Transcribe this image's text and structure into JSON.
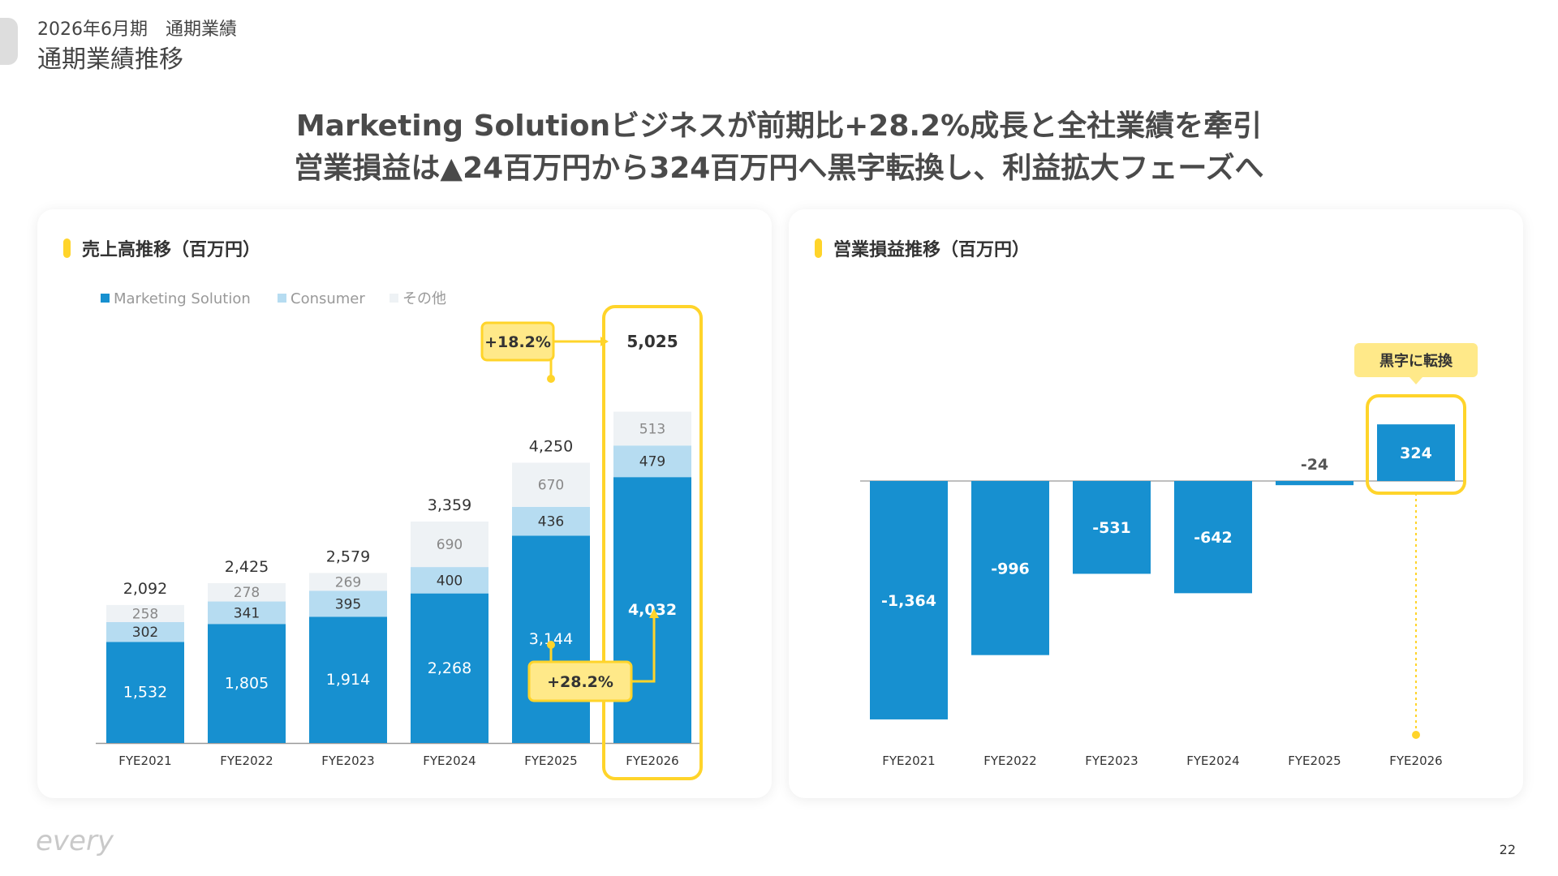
{
  "header": {
    "subtitle": "2026年6月期　通期業績",
    "title": "通期業績推移"
  },
  "headline": {
    "line1": "Marketing Solutionビジネスが前期比+28.2%成長と全社業績を牽引",
    "line2": "営業損益は▲24百万円から324百万円へ黒字転換し、利益拡大フェーズへ"
  },
  "colors": {
    "marketing": "#1790d0",
    "consumer": "#b6dcf1",
    "other": "#eef2f5",
    "highlight": "#ffd42a",
    "callout_fill": "#ffe989"
  },
  "chart_data": [
    {
      "type": "bar",
      "stacked": true,
      "title": "売上高推移（百万円）",
      "categories": [
        "FYE2021",
        "FYE2022",
        "FYE2023",
        "FYE2024",
        "FYE2025",
        "FYE2026"
      ],
      "series": [
        {
          "name": "Marketing Solution",
          "values": [
            1532,
            1805,
            1914,
            2268,
            3144,
            4032
          ]
        },
        {
          "name": "Consumer",
          "values": [
            302,
            341,
            395,
            400,
            436,
            479
          ]
        },
        {
          "name": "その他",
          "values": [
            258,
            278,
            269,
            690,
            670,
            513
          ]
        }
      ],
      "totals": [
        2092,
        2425,
        2579,
        3359,
        4250,
        5025
      ],
      "total_labels": [
        "2,092",
        "2,425",
        "2,579",
        "3,359",
        "4,250",
        "5,025"
      ],
      "segment_labels": [
        [
          "1,532",
          "1,805",
          "1,914",
          "2,268",
          "3,144",
          "4,032"
        ],
        [
          "302",
          "341",
          "395",
          "400",
          "436",
          "479"
        ],
        [
          "258",
          "278",
          "269",
          "690",
          "670",
          "513"
        ]
      ],
      "legend_position": "top-left",
      "annotations": {
        "total_growth": "+18.2%",
        "marketing_growth": "+28.2%"
      },
      "highlight_category": "FYE2026"
    },
    {
      "type": "bar",
      "title": "営業損益推移（百万円）",
      "categories": [
        "FYE2021",
        "FYE2022",
        "FYE2023",
        "FYE2024",
        "FYE2025",
        "FYE2026"
      ],
      "values": [
        -1364,
        -996,
        -531,
        -642,
        -24,
        324
      ],
      "value_labels": [
        "-1,364",
        "-996",
        "-531",
        "-642",
        "-24",
        "324"
      ],
      "annotations": {
        "profit_turn": "黒字に転換"
      },
      "highlight_category": "FYE2026"
    }
  ],
  "footer": {
    "logo_text": "every",
    "page_number": "22"
  }
}
